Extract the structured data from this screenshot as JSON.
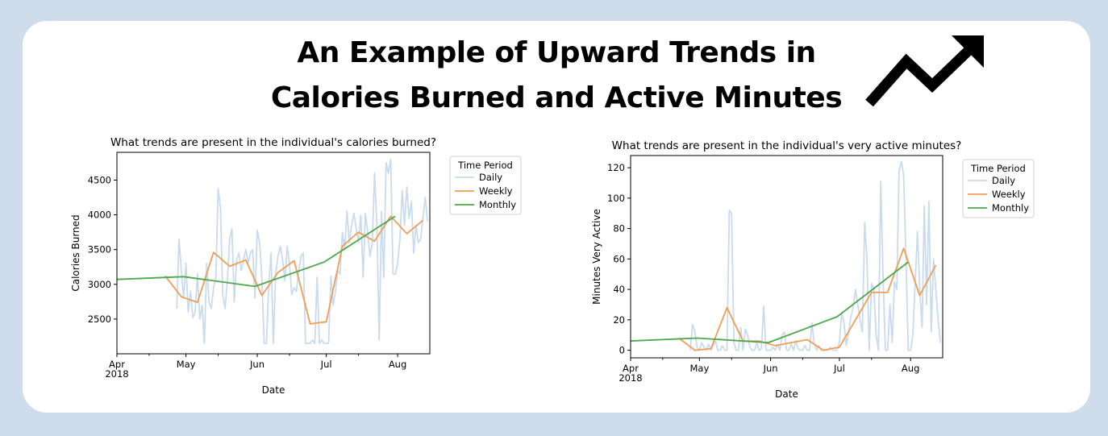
{
  "header": {
    "title_line1": "An Example of Upward Trends in",
    "title_line2": "Calories Burned and Active Minutes",
    "icon": "trending-up-icon"
  },
  "colors": {
    "background": "#cfdcec",
    "daily": "#c9dbee",
    "weekly": "#f29d54",
    "monthly": "#4ca84a"
  },
  "chart_data": [
    {
      "type": "line",
      "title": "What trends are present in the individual's calories burned?",
      "xlabel": "Date",
      "ylabel": "Calories Burned",
      "x_ticks": [
        "Apr\n2018",
        "May",
        "Jun",
        "Jul",
        "Aug"
      ],
      "y_ticks": [
        2500,
        3000,
        3500,
        4000,
        4500
      ],
      "xlim": [
        "2018-04-01",
        "2018-08-15"
      ],
      "ylim": [
        2000,
        4900
      ],
      "legend": {
        "title": "Time Period",
        "position": "outside-right",
        "entries": [
          "Daily",
          "Weekly",
          "Monthly"
        ]
      },
      "series": [
        {
          "name": "Daily",
          "x": [
            "2018-04-27",
            "2018-04-28",
            "2018-04-29",
            "2018-04-30",
            "2018-05-01",
            "2018-05-02",
            "2018-05-03",
            "2018-05-04",
            "2018-05-05",
            "2018-05-06",
            "2018-05-07",
            "2018-05-08",
            "2018-05-09",
            "2018-05-10",
            "2018-05-11",
            "2018-05-12",
            "2018-05-13",
            "2018-05-14",
            "2018-05-15",
            "2018-05-16",
            "2018-05-17",
            "2018-05-18",
            "2018-05-19",
            "2018-05-20",
            "2018-05-21",
            "2018-05-22",
            "2018-05-23",
            "2018-05-24",
            "2018-05-25",
            "2018-05-26",
            "2018-05-27",
            "2018-05-28",
            "2018-05-29",
            "2018-05-30",
            "2018-05-31",
            "2018-06-01",
            "2018-06-02",
            "2018-06-03",
            "2018-06-04",
            "2018-06-05",
            "2018-06-06",
            "2018-06-07",
            "2018-06-08",
            "2018-06-09",
            "2018-06-10",
            "2018-06-11",
            "2018-06-12",
            "2018-06-13",
            "2018-06-14",
            "2018-06-15",
            "2018-06-16",
            "2018-06-17",
            "2018-06-18",
            "2018-06-19",
            "2018-06-20",
            "2018-06-21",
            "2018-06-22",
            "2018-06-23",
            "2018-06-24",
            "2018-06-25",
            "2018-06-26",
            "2018-06-27",
            "2018-06-28",
            "2018-06-29",
            "2018-06-30",
            "2018-07-01",
            "2018-07-02",
            "2018-07-03",
            "2018-07-04",
            "2018-07-05",
            "2018-07-06",
            "2018-07-07",
            "2018-07-08",
            "2018-07-09",
            "2018-07-10",
            "2018-07-11",
            "2018-07-12",
            "2018-07-13",
            "2018-07-14",
            "2018-07-15",
            "2018-07-16",
            "2018-07-17",
            "2018-07-18",
            "2018-07-19",
            "2018-07-20",
            "2018-07-21",
            "2018-07-22",
            "2018-07-23",
            "2018-07-24",
            "2018-07-25",
            "2018-07-26",
            "2018-07-27",
            "2018-07-28",
            "2018-07-29",
            "2018-07-30",
            "2018-07-31",
            "2018-08-01",
            "2018-08-02",
            "2018-08-03",
            "2018-08-04",
            "2018-08-05",
            "2018-08-06",
            "2018-08-07",
            "2018-08-08",
            "2018-08-09",
            "2018-08-10",
            "2018-08-11",
            "2018-08-12",
            "2018-08-13",
            "2018-08-14"
          ],
          "values": [
            2650,
            3650,
            3200,
            2800,
            3300,
            2600,
            2900,
            2520,
            2600,
            3150,
            2500,
            2700,
            2150,
            3300,
            2750,
            2650,
            2950,
            3100,
            4380,
            4100,
            2850,
            2650,
            3050,
            3650,
            3800,
            2750,
            3350,
            3450,
            3200,
            3350,
            3500,
            3300,
            3450,
            3500,
            2800,
            3780,
            3600,
            3100,
            2150,
            2150,
            3000,
            3450,
            2150,
            3150,
            3400,
            3550,
            3350,
            3050,
            3550,
            3300,
            2850,
            2950,
            2900,
            3200,
            3400,
            3450,
            2150,
            2150,
            2150,
            2200,
            2150,
            3100,
            2150,
            2200,
            2150,
            2150,
            2150,
            3120,
            2700,
            2900,
            3200,
            3150,
            3750,
            3500,
            4050,
            3600,
            3850,
            4020,
            3800,
            3600,
            4000,
            3100,
            4020,
            3750,
            3400,
            3600,
            4600,
            3850,
            2200,
            4050,
            3100,
            4750,
            4600,
            4800,
            3150,
            3150,
            3300,
            3650,
            4350,
            3850,
            4400,
            3950,
            4200,
            3450,
            3850,
            3600,
            3650,
            3950,
            4250,
            3900
          ]
        },
        {
          "name": "Weekly",
          "x": [
            "2018-04-22",
            "2018-04-29",
            "2018-05-06",
            "2018-05-13",
            "2018-05-20",
            "2018-05-27",
            "2018-06-03",
            "2018-06-10",
            "2018-06-17",
            "2018-06-24",
            "2018-07-01",
            "2018-07-08",
            "2018-07-15",
            "2018-07-22",
            "2018-07-29",
            "2018-08-05",
            "2018-08-12"
          ],
          "values": [
            3120,
            2820,
            2740,
            3460,
            3260,
            3350,
            2840,
            3170,
            3340,
            2430,
            2460,
            3550,
            3750,
            3620,
            3980,
            3730,
            3920
          ]
        },
        {
          "name": "Monthly",
          "x": [
            "2018-03-31",
            "2018-04-30",
            "2018-05-31",
            "2018-06-30",
            "2018-07-31"
          ],
          "values": [
            3070,
            3110,
            2970,
            3320,
            3980
          ]
        }
      ]
    },
    {
      "type": "line",
      "title": "What trends are present in the individual's very active minutes?",
      "xlabel": "Date",
      "ylabel": "Minutes Very Active",
      "x_ticks": [
        "Apr\n2018",
        "May",
        "Jun",
        "Jul",
        "Aug"
      ],
      "y_ticks": [
        0,
        20,
        40,
        60,
        80,
        100,
        120
      ],
      "xlim": [
        "2018-04-01",
        "2018-08-15"
      ],
      "ylim": [
        -5,
        128
      ],
      "legend": {
        "title": "Time Period",
        "position": "outside-right",
        "entries": [
          "Daily",
          "Weekly",
          "Monthly"
        ]
      },
      "series": [
        {
          "name": "Daily",
          "x": [
            "2018-04-27",
            "2018-04-28",
            "2018-04-29",
            "2018-04-30",
            "2018-05-01",
            "2018-05-02",
            "2018-05-03",
            "2018-05-04",
            "2018-05-05",
            "2018-05-06",
            "2018-05-07",
            "2018-05-08",
            "2018-05-09",
            "2018-05-10",
            "2018-05-11",
            "2018-05-12",
            "2018-05-13",
            "2018-05-14",
            "2018-05-15",
            "2018-05-16",
            "2018-05-17",
            "2018-05-18",
            "2018-05-19",
            "2018-05-20",
            "2018-05-21",
            "2018-05-22",
            "2018-05-23",
            "2018-05-24",
            "2018-05-25",
            "2018-05-26",
            "2018-05-27",
            "2018-05-28",
            "2018-05-29",
            "2018-05-30",
            "2018-05-31",
            "2018-06-01",
            "2018-06-02",
            "2018-06-03",
            "2018-06-04",
            "2018-06-05",
            "2018-06-06",
            "2018-06-07",
            "2018-06-08",
            "2018-06-09",
            "2018-06-10",
            "2018-06-11",
            "2018-06-12",
            "2018-06-13",
            "2018-06-14",
            "2018-06-15",
            "2018-06-16",
            "2018-06-17",
            "2018-06-18",
            "2018-06-19",
            "2018-06-20",
            "2018-06-21",
            "2018-06-22",
            "2018-06-23",
            "2018-06-24",
            "2018-06-25",
            "2018-06-26",
            "2018-06-27",
            "2018-06-28",
            "2018-06-29",
            "2018-06-30",
            "2018-07-01",
            "2018-07-02",
            "2018-07-03",
            "2018-07-04",
            "2018-07-05",
            "2018-07-06",
            "2018-07-07",
            "2018-07-08",
            "2018-07-09",
            "2018-07-10",
            "2018-07-11",
            "2018-07-12",
            "2018-07-13",
            "2018-07-14",
            "2018-07-15",
            "2018-07-16",
            "2018-07-17",
            "2018-07-18",
            "2018-07-19",
            "2018-07-20",
            "2018-07-21",
            "2018-07-22",
            "2018-07-23",
            "2018-07-24",
            "2018-07-25",
            "2018-07-26",
            "2018-07-27",
            "2018-07-28",
            "2018-07-29",
            "2018-07-30",
            "2018-07-31",
            "2018-08-01",
            "2018-08-02",
            "2018-08-03",
            "2018-08-04",
            "2018-08-05",
            "2018-08-06",
            "2018-08-07",
            "2018-08-08",
            "2018-08-09",
            "2018-08-10",
            "2018-08-11",
            "2018-08-12",
            "2018-08-13",
            "2018-08-14"
          ],
          "values": [
            0,
            17,
            12,
            2,
            0,
            5,
            2,
            0,
            4,
            0,
            3,
            6,
            0,
            0,
            3,
            0,
            0,
            92,
            90,
            5,
            0,
            0,
            15,
            0,
            14,
            10,
            2,
            0,
            0,
            5,
            0,
            1,
            29,
            0,
            0,
            0,
            2,
            0,
            4,
            0,
            10,
            12,
            0,
            0,
            4,
            0,
            6,
            1,
            0,
            0,
            3,
            0,
            0,
            18,
            5,
            0,
            3,
            0,
            0,
            0,
            0,
            2,
            0,
            0,
            0,
            5,
            25,
            18,
            3,
            12,
            22,
            28,
            40,
            30,
            20,
            12,
            84,
            60,
            0,
            44,
            40,
            10,
            0,
            111,
            50,
            0,
            0,
            30,
            5,
            45,
            40,
            118,
            124,
            115,
            60,
            0,
            0,
            10,
            45,
            78,
            40,
            15,
            95,
            30,
            98,
            12,
            60,
            40,
            20,
            5
          ]
        },
        {
          "name": "Weekly",
          "x": [
            "2018-04-22",
            "2018-04-29",
            "2018-05-06",
            "2018-05-13",
            "2018-05-20",
            "2018-05-27",
            "2018-06-03",
            "2018-06-10",
            "2018-06-17",
            "2018-06-24",
            "2018-07-01",
            "2018-07-08",
            "2018-07-15",
            "2018-07-22",
            "2018-07-29",
            "2018-08-05",
            "2018-08-12"
          ],
          "values": [
            8,
            0,
            1,
            28,
            6,
            6,
            3,
            5,
            7,
            0,
            2,
            20,
            38,
            38,
            67,
            36,
            56
          ]
        },
        {
          "name": "Monthly",
          "x": [
            "2018-03-31",
            "2018-04-30",
            "2018-05-31",
            "2018-06-30",
            "2018-07-31"
          ],
          "values": [
            6,
            8,
            5,
            22,
            58
          ]
        }
      ]
    }
  ]
}
